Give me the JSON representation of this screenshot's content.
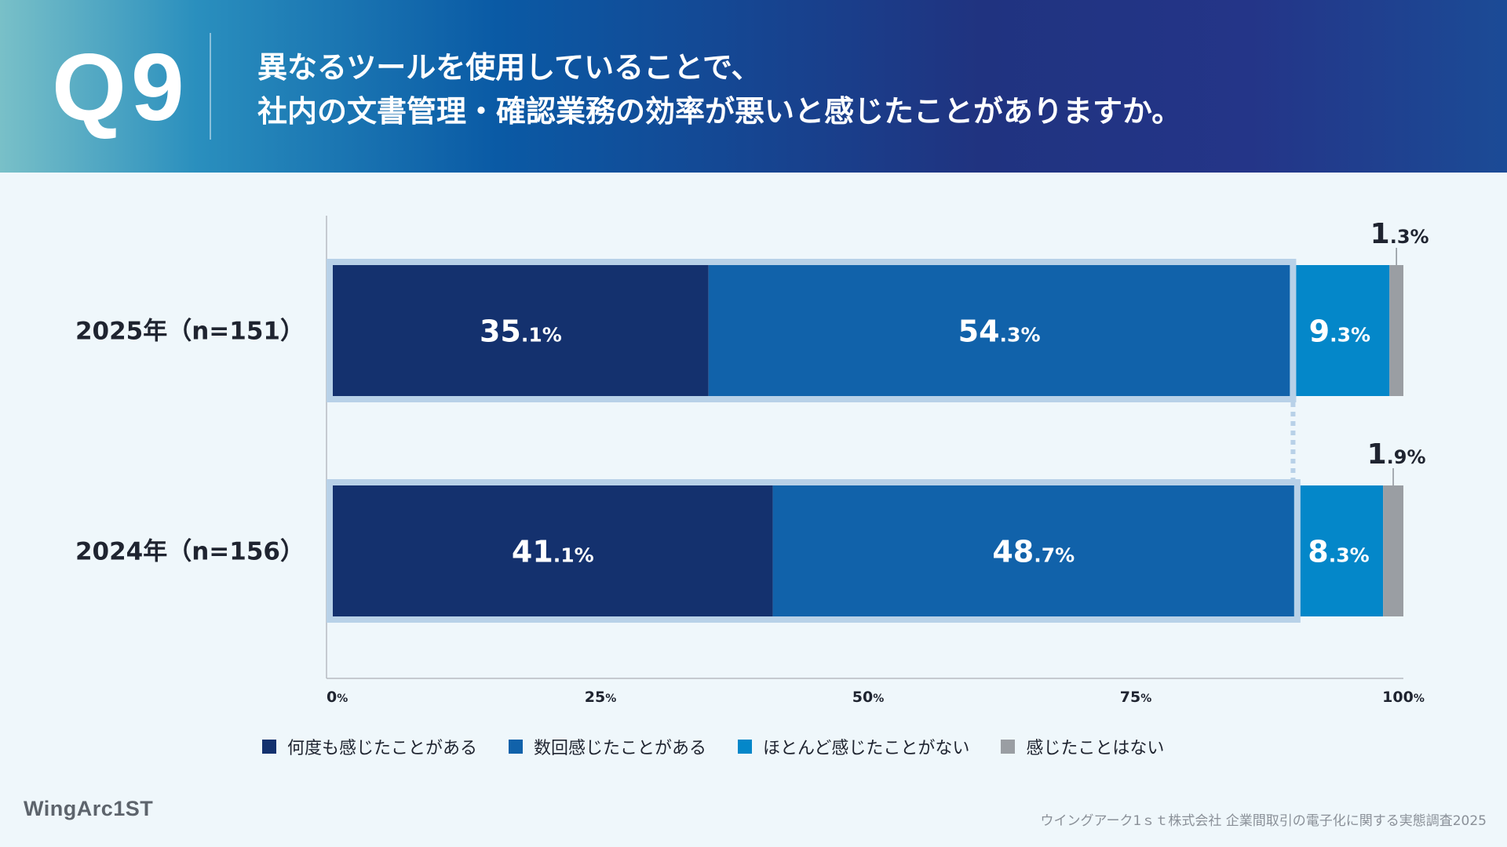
{
  "header": {
    "question_number": "Q9",
    "question_line1": "異なるツールを使用していることで、",
    "question_line2": "社内の文書管理・確認業務の効率が悪いと感じたことがありますか。"
  },
  "colors": {
    "often": "#14316e",
    "several": "#1162aa",
    "rarely": "#0487c9",
    "never": "#9a9ea3",
    "highlight_border": "#b8d1e8",
    "axis": "#b7bcc2"
  },
  "chart_data": {
    "type": "bar",
    "orientation": "horizontal",
    "stacked": true,
    "categories": [
      "2025年（n=151）",
      "2024年（n=156）"
    ],
    "series": [
      {
        "name": "何度も感じたことがある",
        "values": [
          35.1,
          41.1
        ]
      },
      {
        "name": "数回感じたことがある",
        "values": [
          54.3,
          48.7
        ]
      },
      {
        "name": "ほとんど感じたことがない",
        "values": [
          9.3,
          8.3
        ]
      },
      {
        "name": "感じたことはない",
        "values": [
          1.3,
          1.9
        ]
      }
    ],
    "xlim": [
      0,
      100
    ],
    "ticks": [
      0,
      25,
      50,
      75,
      100
    ],
    "unit": "%",
    "highlighted_series": [
      "何度も感じたことがある",
      "数回感じたことがある"
    ]
  },
  "footer": {
    "brand": "WingArc1ST",
    "source": "ウイングアーク1ｓｔ株式会社 企業間取引の電子化に関する実態調査2025"
  }
}
